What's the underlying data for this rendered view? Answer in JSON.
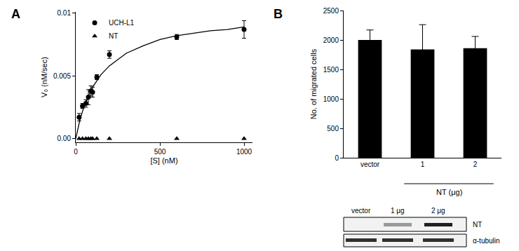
{
  "chart_data": [
    {
      "panel": "A",
      "type": "scatter",
      "x_label": "[S] (nM)",
      "y_label": "V₀ (nM/sec)",
      "xlim": [
        0,
        1050
      ],
      "xticks": [
        0,
        500,
        1000
      ],
      "ylim": [
        -0.0003,
        0.0101
      ],
      "yticks": [
        {
          "value": 0,
          "label": "0.00"
        },
        0.005,
        0.01
      ],
      "legend": "upper left",
      "grid": false,
      "series": [
        {
          "name": "UCH-L1",
          "type": "scatter",
          "marker": "circle",
          "color": "#000000",
          "x": [
            20,
            40,
            60,
            75,
            90,
            100,
            125,
            200,
            600,
            1000
          ],
          "values": [
            0.0017,
            0.0026,
            0.0028,
            0.0033,
            0.0038,
            0.0037,
            0.0049,
            0.0067,
            0.0081,
            0.0087
          ],
          "error": [
            0.0003,
            0.0002,
            0.0003,
            0.0006,
            0.0004,
            0.0004,
            0.0002,
            0.0003,
            0.0002,
            0.0007
          ]
        },
        {
          "name": "NT",
          "type": "scatter",
          "marker": "triangle-up",
          "color": "#000000",
          "x": [
            20,
            40,
            60,
            75,
            90,
            100,
            125,
            200,
            600,
            1000
          ],
          "values": [
            0,
            0,
            0,
            0,
            0,
            0,
            0,
            0,
            0,
            0
          ]
        },
        {
          "type": "line",
          "line_style": "solid",
          "color": "#000000",
          "x": [
            0,
            25,
            50,
            100,
            150,
            200,
            300,
            400,
            500,
            600,
            700,
            800,
            900,
            1000
          ],
          "values": [
            0,
            0.0015,
            0.0026,
            0.0041,
            0.0051,
            0.0058,
            0.0068,
            0.0074,
            0.0079,
            0.0082,
            0.0084,
            0.0086,
            0.0087,
            0.0089
          ]
        }
      ]
    },
    {
      "panel": "B",
      "type": "bar",
      "y_label": "No. of migrated cells",
      "categories": [
        "vector",
        "1",
        "2"
      ],
      "values": [
        2000,
        1840,
        1860
      ],
      "error": [
        170,
        420,
        200
      ],
      "color": "#000000",
      "ylim": [
        0,
        2500
      ],
      "yticks": [
        0,
        500,
        1000,
        1500,
        2000,
        2500
      ],
      "grid": false,
      "group_label": "NT (μg)",
      "blot": {
        "lanes": [
          "vector",
          "1 μg",
          "2 μg"
        ],
        "rows": [
          "NT",
          "α-tubulin"
        ]
      }
    }
  ]
}
